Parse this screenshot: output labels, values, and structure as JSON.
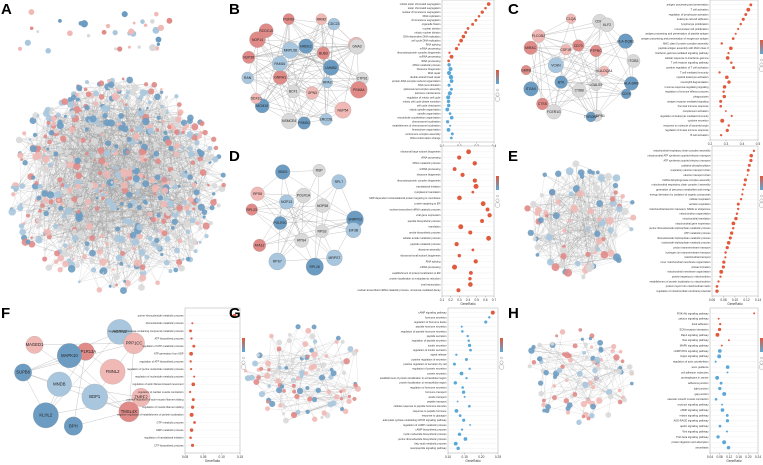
{
  "colors": {
    "pos": "#e08b88",
    "pos_light": "#f1b9b5",
    "neg": "#6d9cc2",
    "neg_light": "#a8c6dd",
    "edge": "#9a9a9a",
    "dot": "#e05a3c",
    "dot_blue": "#5aa8d8"
  },
  "panels": [
    {
      "label": "A"
    },
    {
      "label": "B",
      "nodes": [
        "NRDE2",
        "RRM2",
        "CDC23",
        "BUB3",
        "EXOSC9",
        "GNA3",
        "LMNB2",
        "CTPS1",
        "PSMA4",
        "RPA3",
        "NUP54",
        "ERCC6L",
        "GPN3",
        "PSMD2",
        "NSMCE4",
        "BCF1",
        "MCM10",
        "DDX10",
        "GNRH1",
        "RAN",
        "NUP35",
        "PAM16",
        "NOP14",
        "RCDC10",
        "MRPL58",
        "PUF60"
      ],
      "axis_ticks": [
        "0.1",
        "0.2",
        "0.3",
        "0.4"
      ],
      "xlabel": "GeneRatio",
      "terms": [
        "mitotic sister chromatid segregation",
        "sister chromatid segregation",
        "nuclear chromosome segregation",
        "DNA replication",
        "chromosome segregation",
        "organelle fission",
        "nuclear division",
        "mitotic nuclear division",
        "DNA-dependent DNA replication",
        "cell cycle DNA replication",
        "RNA splicing",
        "mRNA processing",
        "ribonucleoprotein complex biogenesis",
        "ncRNA processing",
        "rRNA processing",
        "rRNA metabolic process",
        "ribosome biogenesis",
        "DNA repair",
        "double-strand break repair",
        "protein-DNA complex subunit organization",
        "DNA recombination",
        "spliceosomal complex assembly",
        "telomere maintenance",
        "regulation of mitotic cell cycle",
        "mitotic cell cycle phase transition",
        "cell cycle checkpoint",
        "mitotic spindle organization",
        "spindle organization",
        "microtubule cytoskeleton organization",
        "chromosome localization",
        "establishment of chromosome localization",
        "kinetochore organization",
        "centromere complex assembly",
        "DNA conformation change"
      ]
    },
    {
      "label": "C",
      "nodes": [
        "CD70",
        "CDH9",
        "KLF2",
        "PTPRC",
        "HLA-DQB1",
        "ITGB2",
        "HLA-DQA1",
        "HLA-DRB",
        "CD74",
        "LGALS9",
        "HLA-DPB1",
        "TYROBP",
        "CYBB",
        "FCER1G",
        "CTSS",
        "BTK",
        "ITGAX",
        "GMFB",
        "VCAN",
        "MIRAC",
        "PLCGB2",
        "CSF1R",
        "C1QA"
      ],
      "axis_ticks": [
        "0.2",
        "0.3",
        "0.4",
        "0.5"
      ],
      "xlabel": "GeneRatio",
      "terms": [
        "antigen processing and presentation",
        "T cell activation",
        "regulation of lymphocyte activation",
        "leukocyte cell-cell adhesion",
        "lymphocyte proliferation",
        "mononuclear cell proliferation",
        "antigen processing and presentation of peptide antigen",
        "antigen processing and presentation of exogenous antigen",
        "MHC class II protein complex assembly",
        "peptide antigen assembly with MHC class II",
        "interferon-gamma-mediated signaling pathway",
        "cellular response to interferon-gamma",
        "T cell receptor signaling pathway",
        "positive regulation of T cell activation",
        "T cell mediated immunity",
        "myeloid leukocyte activation",
        "neutrophil degranulation",
        "immune response-regulating signaling",
        "regulation of immune effector process",
        "phagocytosis",
        "antigen receptor-mediated signaling",
        "humoral immune response",
        "complement activation",
        "regulation of leukocyte mediated immunity",
        "cytokine secretion",
        "response to molecule of bacterial origin",
        "regulation of innate immune response",
        "B cell activation"
      ]
    },
    {
      "label": "D",
      "nodes": [
        "POLR1A",
        "RSP",
        "RPL7",
        "NOP58",
        "SNRPD3",
        "EIF3B",
        "RPS3",
        "MRPS7",
        "RPL26",
        "RPS4",
        "RPS7",
        "ATA12",
        "POLR2C",
        "RPL23",
        "RPS8",
        "NOP13",
        "SBDS"
      ],
      "axis_ticks": [
        "0.1",
        "0.2",
        "0.3",
        "0.4",
        "0.5",
        "0.6",
        "0.7"
      ],
      "xlabel": "GeneRatio",
      "terms": [
        "ribosomal large subunit biogenesis",
        "rRNA processing",
        "rRNA metabolic process",
        "ncRNA processing",
        "ribosome biogenesis",
        "ribonucleoprotein complex biogenesis",
        "translational initiation",
        "cytoplasmic translation",
        "SRP-dependent cotranslational protein targeting to membrane",
        "protein targeting to ER",
        "nuclear-transcribed mRNA catabolic process",
        "viral gene expression",
        "peptide biosynthetic process",
        "translation",
        "amide biosynthetic process",
        "cellular amide metabolic process",
        "peptide metabolic process",
        "ribosome assembly",
        "ribosomal small subunit biogenesis",
        "RNA splicing",
        "mRNA processing",
        "establishment of protein localization to ER",
        "protein localization to endoplasmic reticulum",
        "viral transcription",
        "nuclear-transcribed mRNA catabolic process, nonsense-mediated decay"
      ]
    },
    {
      "label": "E",
      "axis_ticks": [
        "0.06",
        "0.08",
        "0.10",
        "0.12",
        "0.14"
      ],
      "xlabel": "GeneRatio",
      "terms": [
        "mitochondrial respiratory chain complex assembly",
        "mitochondrial ATP synthesis coupled electron transport",
        "ATP synthesis coupled electron transport",
        "oxidative phosphorylation",
        "respiratory electron transport chain",
        "electron transport chain",
        "NADH dehydrogenase complex assembly",
        "mitochondrial respiratory chain complex I assembly",
        "generation of precursor metabolites and energy",
        "energy derivation by oxidation of organic compounds",
        "cellular respiration",
        "aerobic respiration",
        "mitochondrial electron transport, NADH to ubiquinone",
        "mitochondrion organization",
        "mitochondrial translation",
        "mitochondrial gene expression",
        "purine ribonucleoside triphosphate metabolic process",
        "ATP metabolic process",
        "ribonucleoside triphosphate metabolic process",
        "nucleoside triphosphate metabolic process",
        "proton transmembrane transport",
        "hydrogen ion transmembrane transport",
        "mitochondrial transport",
        "inner mitochondrial membrane organization",
        "cristae formation",
        "mitochondrial membrane organization",
        "protein targeting to mitochondrion",
        "establishment of protein localization to mitochondrion",
        "protein import into mitochondrial matrix",
        "regulation of mitochondrial membrane potential"
      ]
    },
    {
      "label": "F",
      "nodes": [
        "PPP1R13A",
        "AGRN2",
        "PPP1CC",
        "FMNL2",
        "ZNRF2",
        "TMSL4X",
        "BDP1",
        "BPH",
        "KLHL2",
        "MNDB",
        "SUPB8",
        "MAGED1",
        "MAPK10"
      ],
      "axis_ticks": [
        "0.08",
        "0.05",
        "0.10",
        "0.15"
      ],
      "xlabel": "GeneRatio",
      "terms": [
        "purine ribonucleotide metabolic process",
        "ribonucleotide metabolic process",
        "regulation of nucleobase-containing compound metabolic process",
        "ATP biosynthetic process",
        "regulation of ATP metabolic process",
        "ATP generation from ADP",
        "regulation of ATP biosynthetic process",
        "regulation of purine nucleotide metabolic process",
        "regulation of nucleotide metabolic process",
        "regulation of actin filament-based movement",
        "regulation of cardiac muscle contraction",
        "positive regulation of actin-myosin filament sliding",
        "regulation of muscle filament sliding",
        "negative regulation of establishment of protein localization",
        "GTP metabolic process",
        "GMP metabolic process",
        "regulation of translational initiation",
        "CTP biosynthetic process"
      ]
    },
    {
      "label": "G",
      "axis_ticks": [
        "0.10",
        "0.15",
        "0.20",
        "0.25"
      ],
      "xlabel": "GeneRatio",
      "terms": [
        "cAMP signaling pathway",
        "hormone secretion",
        "regulation of hormone levels",
        "peptide hormone secretion",
        "regulation of peptide hormone secretion",
        "peptide secretion",
        "regulation of peptide secretion",
        "insulin secretion",
        "regulation of insulin secretion",
        "signal release",
        "positive regulation of secretion",
        "positive regulation of secretion by cell",
        "regulation of protein secretion",
        "protein secretion",
        "establishment of protein localization to extracellular region",
        "protein localization to extracellular region",
        "regulation of hormone secretion",
        "hormone transport",
        "amide transport",
        "peptide transport",
        "cellular response to peptide hormone stimulus",
        "response to peptide hormone",
        "response to glucagon",
        "adenylate cyclase-modulating GPCR signaling pathway",
        "regulation of cAMP metabolic process",
        "cAMP biosynthetic process",
        "cyclic nucleotide biosynthetic process",
        "purine ribonucleotide biosynthetic process",
        "fatty acid metabolic process",
        "neuropeptide signaling pathway"
      ]
    },
    {
      "label": "H",
      "axis_ticks": [
        "0.04",
        "0.08",
        "0.12",
        "0.16",
        "0.20",
        "0.24"
      ],
      "xlabel": "GeneRatio",
      "terms": [
        "PI3K-Akt signaling pathway",
        "calcium signaling pathway",
        "focal adhesion",
        "ECM-receptor interaction",
        "Rap1 signaling pathway",
        "Ras signaling pathway",
        "MAPK signaling pathway",
        "cGMP-PKG signaling pathway",
        "Hippo signaling pathway",
        "regulation of actin cytoskeleton",
        "axon guidance",
        "cell adhesion molecules",
        "proteoglycans in cancer",
        "adherens junction",
        "tight junction",
        "gap junction",
        "vascular smooth muscle contraction",
        "oxytocin signaling pathway",
        "cAMP signaling pathway",
        "relaxin signaling pathway",
        "AGE-RAGE signaling pathway",
        "apelin signaling pathway",
        "Wnt signaling pathway",
        "TGF-beta signaling pathway",
        "protein digestion and absorption",
        "amoebiasis"
      ]
    }
  ]
}
